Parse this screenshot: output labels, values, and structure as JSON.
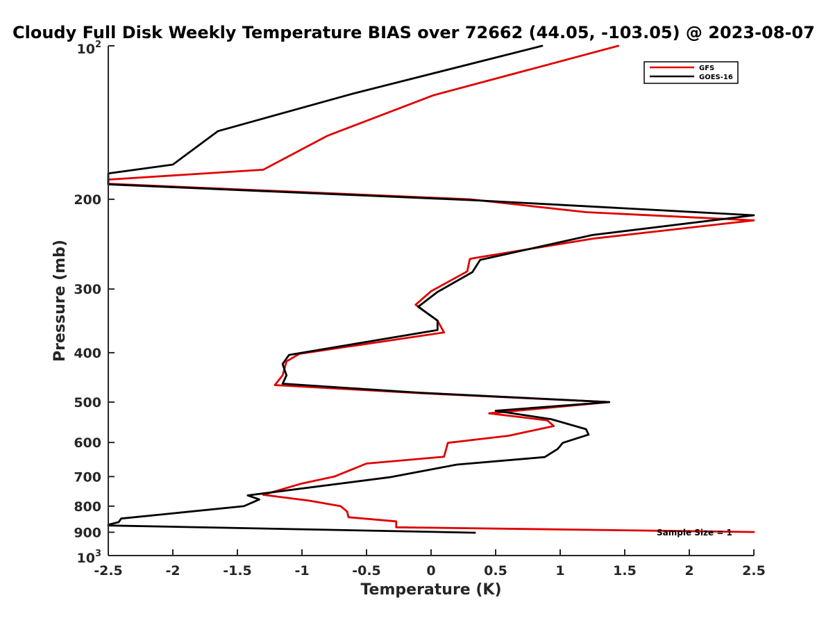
{
  "chart_data": {
    "type": "line",
    "title": "Cloudy Full Disk Weekly Temperature BIAS over 72662 (44.05, -103.05) @ 2023-08-07",
    "xlabel": "Temperature (K)",
    "ylabel": "Pressure (mb)",
    "xlim": [
      -2.5,
      2.5
    ],
    "ylim": [
      100,
      1000
    ],
    "y_scale": "log",
    "y_reversed": true,
    "x_ticks": [
      -2.5,
      -2,
      -1.5,
      -1,
      -0.5,
      0,
      0.5,
      1,
      1.5,
      2,
      2.5
    ],
    "x_tick_labels": [
      "-2.5",
      "-2",
      "-1.5",
      "-1",
      "-0.5",
      "0",
      "0.5",
      "1",
      "1.5",
      "2",
      "2.5"
    ],
    "y_ticks": [
      200,
      300,
      400,
      500,
      600,
      700,
      800,
      900
    ],
    "y_tick_labels": [
      "200",
      "300",
      "400",
      "500",
      "600",
      "700",
      "800",
      "900"
    ],
    "y_top_label": {
      "base": "10",
      "exp": "2"
    },
    "y_bottom_label": {
      "base": "10",
      "exp": "3"
    },
    "grid": false,
    "legend_position": "top-right",
    "annotation": "Sample Size = 1",
    "series": [
      {
        "name": "GFS",
        "color": "#e00000",
        "points": [
          [
            1.45,
            100
          ],
          [
            0.02,
            125
          ],
          [
            -0.8,
            150
          ],
          [
            -1.3,
            175
          ],
          [
            -2.5,
            183
          ],
          [
            -2.5,
            186.5
          ],
          [
            0.3,
            200
          ],
          [
            1.2,
            212
          ],
          [
            2.5,
            220
          ],
          [
            1.25,
            239
          ],
          [
            0.33,
            261
          ],
          [
            0.3,
            262
          ],
          [
            0.28,
            277
          ],
          [
            0.0,
            303
          ],
          [
            -0.12,
            322
          ],
          [
            0.05,
            346
          ],
          [
            0.1,
            365
          ],
          [
            -1.02,
            402
          ],
          [
            -1.12,
            416
          ],
          [
            -1.15,
            443
          ],
          [
            -1.21,
            463
          ],
          [
            -0.1,
            480
          ],
          [
            1.38,
            500
          ],
          [
            0.45,
            526
          ],
          [
            0.9,
            543
          ],
          [
            0.95,
            557
          ],
          [
            0.6,
            582
          ],
          [
            0.13,
            601
          ],
          [
            0.1,
            640
          ],
          [
            -0.5,
            660
          ],
          [
            -0.75,
            700
          ],
          [
            -1.0,
            722
          ],
          [
            -1.3,
            760
          ],
          [
            -0.95,
            780
          ],
          [
            -0.7,
            800
          ],
          [
            -0.65,
            820
          ],
          [
            -0.64,
            841
          ],
          [
            -0.27,
            857
          ],
          [
            -0.27,
            880
          ],
          [
            2.5,
            899
          ]
        ]
      },
      {
        "name": "GOES-16",
        "color": "#000000",
        "points": [
          [
            0.86,
            100
          ],
          [
            -0.6,
            124
          ],
          [
            -1.65,
            147
          ],
          [
            -2.0,
            171
          ],
          [
            -2.5,
            178
          ],
          [
            -2.5,
            187
          ],
          [
            0.35,
            201
          ],
          [
            2.5,
            215
          ],
          [
            1.25,
            235
          ],
          [
            0.38,
            263
          ],
          [
            0.32,
            278
          ],
          [
            0.05,
            304
          ],
          [
            -0.1,
            325
          ],
          [
            0.05,
            346
          ],
          [
            0.05,
            361
          ],
          [
            -1.1,
            404
          ],
          [
            -1.15,
            421
          ],
          [
            -1.12,
            443
          ],
          [
            -1.15,
            460
          ],
          [
            -0.1,
            479
          ],
          [
            1.38,
            500
          ],
          [
            0.5,
            520
          ],
          [
            0.93,
            540
          ],
          [
            1.2,
            565
          ],
          [
            1.22,
            579
          ],
          [
            1.02,
            601
          ],
          [
            0.98,
            618
          ],
          [
            0.88,
            641
          ],
          [
            0.2,
            663
          ],
          [
            -0.32,
            702
          ],
          [
            -1.42,
            762
          ],
          [
            -1.33,
            776
          ],
          [
            -1.45,
            800
          ],
          [
            -2.4,
            846
          ],
          [
            -2.42,
            860
          ],
          [
            -2.5,
            870
          ],
          [
            -2.5,
            873
          ],
          [
            0.34,
            902
          ]
        ]
      }
    ]
  }
}
